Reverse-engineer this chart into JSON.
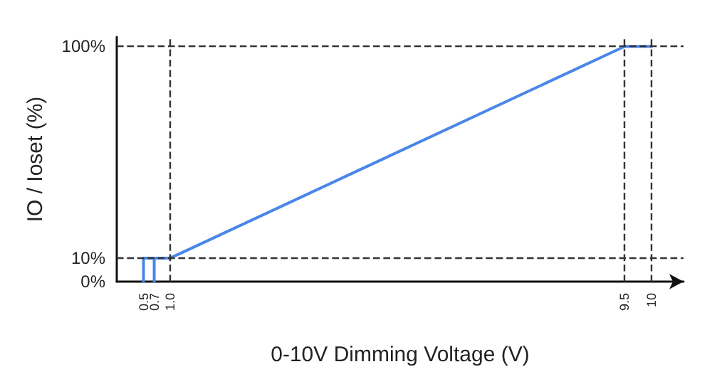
{
  "chart_data": {
    "type": "line",
    "xlabel": "0-10V Dimming Voltage (V)",
    "ylabel": "IO / Ioset (%)",
    "xlim": [
      0,
      10.6
    ],
    "ylim": [
      0,
      104
    ],
    "xticks": [
      0.5,
      0.7,
      {
        "value": 1,
        "label": "1.0"
      },
      9.5,
      10
    ],
    "yticks": [
      {
        "value": 0,
        "label": "0%"
      },
      {
        "value": 10,
        "label": "10%"
      },
      {
        "value": 100,
        "label": "100%"
      }
    ],
    "series": [
      {
        "color": "#4a86e8",
        "x": [
          0.5,
          1,
          9.5,
          10
        ],
        "values": [
          10,
          10,
          100,
          100
        ]
      },
      {
        "color": "#4a86e8",
        "x": [
          0.5,
          0.5
        ],
        "values": [
          10,
          0
        ]
      },
      {
        "color": "#4a86e8",
        "x": [
          0.7,
          0.7
        ],
        "values": [
          0,
          10
        ]
      }
    ],
    "ref_lines": [
      {
        "axis": "x",
        "value": 1,
        "color": "#333333",
        "line_style": "dashed"
      },
      {
        "axis": "x",
        "value": 9.5,
        "color": "#333333",
        "line_style": "dashed"
      },
      {
        "axis": "x",
        "value": 10,
        "color": "#333333",
        "line_style": "dashed"
      },
      {
        "axis": "y",
        "value": 10,
        "color": "#333333",
        "line_style": "dashed"
      },
      {
        "axis": "y",
        "value": 100,
        "color": "#333333",
        "line_style": "dashed"
      }
    ],
    "grid": false,
    "marker": "none",
    "line_style": "solid"
  }
}
